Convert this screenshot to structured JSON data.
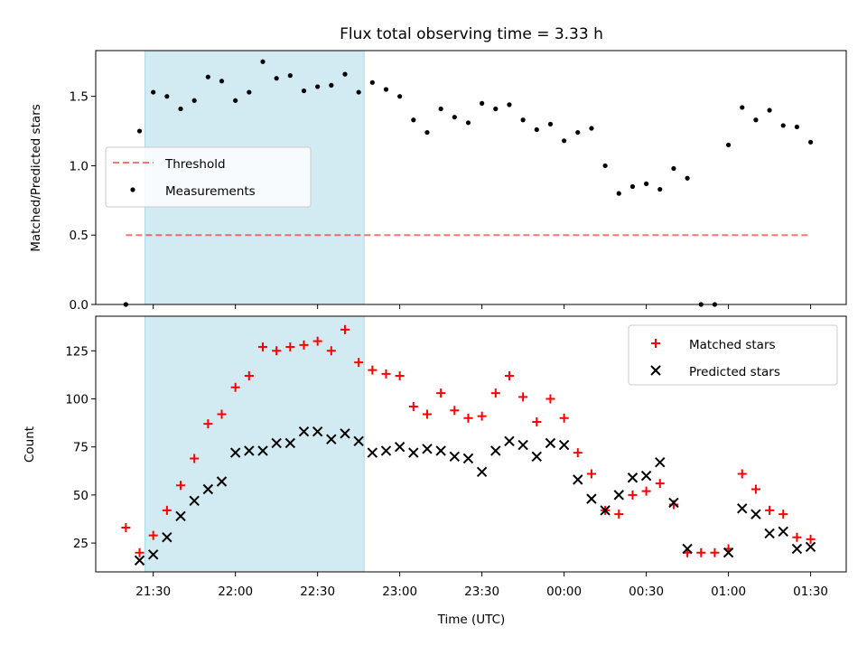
{
  "chart_data": [
    {
      "type": "scatter",
      "title": "Flux total observing time = 3.33 h",
      "ylabel": "Matched/Predicted stars",
      "xlabel": "",
      "ylim": [
        0,
        1.83
      ],
      "yticks": [
        "0.0",
        "0.5",
        "1.0",
        "1.5"
      ],
      "shaded_interval": [
        "21:27",
        "22:47"
      ],
      "shaded_color": "#add8e6",
      "legend_position": "center-left",
      "series": [
        {
          "name": "Threshold",
          "style": "dashed-line",
          "color": "#ff0000",
          "x": [
            "21:20",
            "01:30"
          ],
          "y": [
            0.5,
            0.5
          ]
        },
        {
          "name": "Measurements",
          "style": "dot",
          "color": "#000000",
          "x": [
            "21:20",
            "21:25",
            "21:30",
            "21:35",
            "21:40",
            "21:45",
            "21:50",
            "21:55",
            "22:00",
            "22:05",
            "22:10",
            "22:15",
            "22:20",
            "22:25",
            "22:30",
            "22:35",
            "22:40",
            "22:45",
            "22:50",
            "22:55",
            "23:00",
            "23:05",
            "23:10",
            "23:15",
            "23:20",
            "23:25",
            "23:30",
            "23:35",
            "23:40",
            "23:45",
            "23:50",
            "23:55",
            "00:00",
            "00:05",
            "00:10",
            "00:15",
            "00:20",
            "00:25",
            "00:30",
            "00:35",
            "00:40",
            "00:45",
            "00:50",
            "00:55",
            "01:00",
            "01:05",
            "01:10",
            "01:15",
            "01:20",
            "01:25",
            "01:30"
          ],
          "y": [
            0.0,
            1.25,
            1.53,
            1.5,
            1.41,
            1.47,
            1.64,
            1.61,
            1.47,
            1.53,
            1.75,
            1.63,
            1.65,
            1.54,
            1.57,
            1.58,
            1.66,
            1.53,
            1.6,
            1.55,
            1.5,
            1.33,
            1.24,
            1.41,
            1.35,
            1.31,
            1.45,
            1.41,
            1.44,
            1.33,
            1.26,
            1.3,
            1.18,
            1.24,
            1.27,
            1.0,
            0.8,
            0.85,
            0.87,
            0.83,
            0.98,
            0.91,
            0.0,
            0.0,
            1.15,
            1.42,
            1.33,
            1.4,
            1.29,
            1.28,
            1.17
          ]
        }
      ]
    },
    {
      "type": "scatter",
      "title": "",
      "ylabel": "Count",
      "xlabel": "Time (UTC)",
      "ylim": [
        10,
        143
      ],
      "yticks": [
        "25",
        "50",
        "75",
        "100",
        "125"
      ],
      "xticks": [
        "21:30",
        "22:00",
        "22:30",
        "23:00",
        "23:30",
        "00:00",
        "00:30",
        "01:00",
        "01:30"
      ],
      "legend_position": "top-right",
      "series": [
        {
          "name": "Matched stars",
          "style": "plus",
          "color": "#ff0000",
          "x": [
            "21:20",
            "21:25",
            "21:30",
            "21:35",
            "21:40",
            "21:45",
            "21:50",
            "21:55",
            "22:00",
            "22:05",
            "22:10",
            "22:15",
            "22:20",
            "22:25",
            "22:30",
            "22:35",
            "22:40",
            "22:45",
            "22:50",
            "22:55",
            "23:00",
            "23:05",
            "23:10",
            "23:15",
            "23:20",
            "23:25",
            "23:30",
            "23:35",
            "23:40",
            "23:45",
            "23:50",
            "23:55",
            "00:00",
            "00:05",
            "00:10",
            "00:15",
            "00:20",
            "00:25",
            "00:30",
            "00:35",
            "00:40",
            "00:45",
            "00:50",
            "00:55",
            "01:00",
            "01:05",
            "01:10",
            "01:15",
            "01:20",
            "01:25",
            "01:30"
          ],
          "y": [
            33,
            20,
            29,
            42,
            55,
            69,
            87,
            92,
            106,
            112,
            127,
            125,
            127,
            128,
            130,
            125,
            136,
            119,
            115,
            113,
            112,
            96,
            92,
            103,
            94,
            90,
            91,
            103,
            112,
            101,
            88,
            100,
            90,
            72,
            61,
            42,
            40,
            50,
            52,
            56,
            45,
            20,
            20,
            20,
            22,
            61,
            53,
            42,
            40,
            28,
            27
          ]
        },
        {
          "name": "Predicted stars",
          "style": "x",
          "color": "#000000",
          "x": [
            "21:25",
            "21:30",
            "21:35",
            "21:40",
            "21:45",
            "21:50",
            "21:55",
            "22:00",
            "22:05",
            "22:10",
            "22:15",
            "22:20",
            "22:25",
            "22:30",
            "22:35",
            "22:40",
            "22:45",
            "22:50",
            "22:55",
            "23:00",
            "23:05",
            "23:10",
            "23:15",
            "23:20",
            "23:25",
            "23:30",
            "23:35",
            "23:40",
            "23:45",
            "23:50",
            "23:55",
            "00:00",
            "00:05",
            "00:10",
            "00:15",
            "00:20",
            "00:25",
            "00:30",
            "00:35",
            "00:40",
            "00:45",
            "01:00",
            "01:05",
            "01:10",
            "01:15",
            "01:20",
            "01:25",
            "01:30"
          ],
          "y": [
            16,
            19,
            28,
            39,
            47,
            53,
            57,
            72,
            73,
            73,
            77,
            77,
            83,
            83,
            79,
            82,
            78,
            72,
            73,
            75,
            72,
            74,
            73,
            70,
            69,
            62,
            73,
            78,
            76,
            70,
            77,
            76,
            58,
            48,
            42,
            50,
            59,
            60,
            67,
            46,
            22,
            20,
            43,
            40,
            30,
            31,
            22,
            23
          ]
        }
      ]
    }
  ]
}
